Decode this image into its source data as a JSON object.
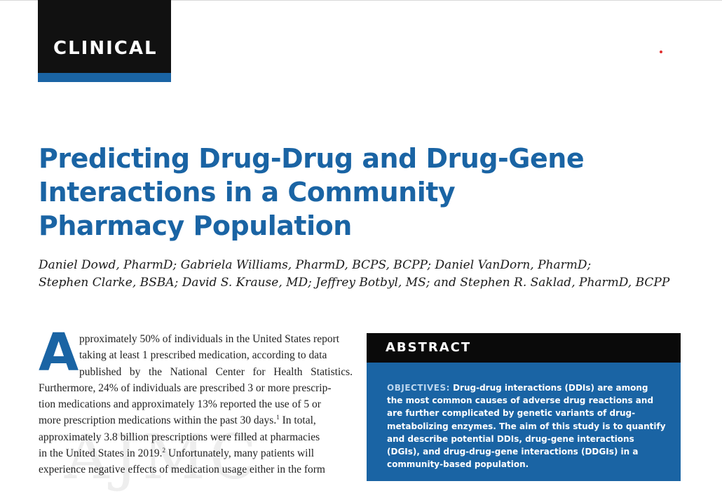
{
  "section_tag": "CLINICAL",
  "accent_color": "#1a64a4",
  "title_lines": [
    "Predicting Drug-Drug and Drug-Gene",
    "Interactions in a Community",
    "Pharmacy Population"
  ],
  "author_lines": [
    "Daniel Dowd, PharmD; Gabriela Williams, PharmD, BCPS, BCPP; Daniel VanDorn, PharmD;",
    "Stephen Clarke, BSBA; David S. Krause, MD; Jeffrey Botbyl, MS; and Stephen R. Saklad, PharmD, BCPP"
  ],
  "body": {
    "dropcap": "A",
    "lines": [
      "pproximately 50% of individuals in the United States report",
      "taking at least 1 prescribed medication, according to data",
      "published by the National Center for Health Statistics.",
      "Furthermore, 24% of individuals are prescribed 3 or more prescrip-",
      "tion medications and approximately 13% reported the use of 5 or",
      "more prescription medications within the past 30 days.",
      "In total,",
      "approximately 3.8 billion prescriptions were filled at pharmacies",
      "in the United States in 2019.",
      "Unfortunately, many patients will",
      "experience negative effects of medication usage either in the form"
    ],
    "ref1": "1",
    "ref2": "2",
    "watermark": "AJMC"
  },
  "abstract": {
    "heading": "ABSTRACT",
    "keyword": "OBJECTIVES:",
    "lines": [
      "Drug-drug interactions (DDIs) are among",
      "the most common causes of adverse drug reactions and",
      "are further complicated by genetic variants of drug-",
      "metabolizing enzymes. The aim of this study is to quantify",
      "and describe potential DDIs, drug-gene interactions",
      "(DGIs), and drug-drug-gene interactions (DDGIs) in a",
      "community-based population."
    ]
  }
}
